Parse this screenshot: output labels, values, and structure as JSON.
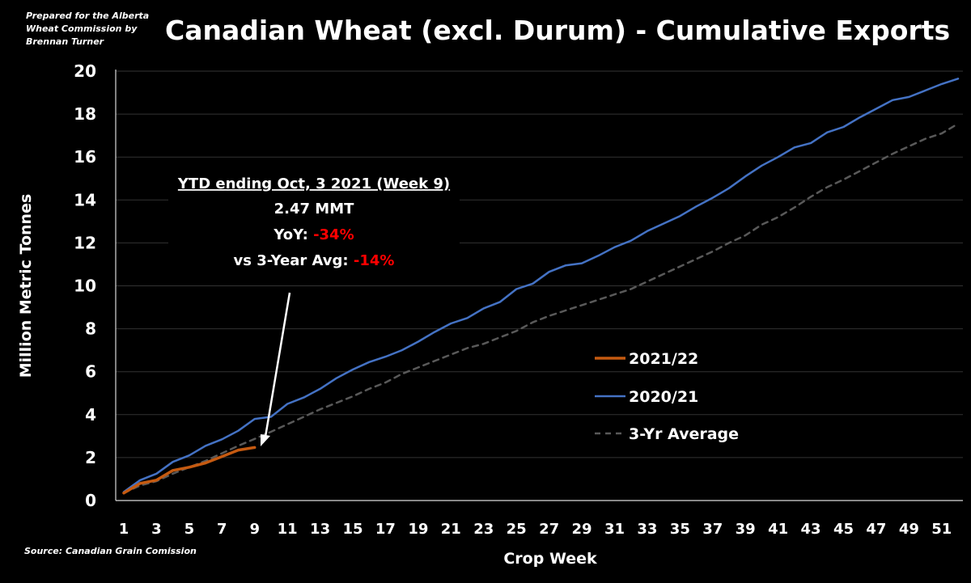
{
  "header": {
    "credit": "Prepared for the Alberta Wheat Commission by Brennan Turner",
    "source": "Source: Canadian Grain Comission"
  },
  "annotation": {
    "heading": "YTD ending Oct, 3 2021 (Week 9)",
    "value": "2.47 MMT",
    "yoy_label": "YoY: ",
    "yoy_value": "-34%",
    "avg_label": "vs 3-Year Avg: ",
    "avg_value": "-14%"
  },
  "colors": {
    "series_2021": "#c55a11",
    "series_2020": "#4472c4",
    "series_avg": "#595959",
    "highlight": "#ff0000",
    "grid": "#333333",
    "text": "#ffffff"
  },
  "chart_data": {
    "type": "line",
    "title": "Canadian Wheat (excl. Durum) - Cumulative Exports",
    "xlabel": "Crop Week",
    "ylabel": "Million Metric Tonnes",
    "xlim": [
      1,
      52
    ],
    "ylim": [
      0,
      20
    ],
    "y_ticks": [
      0,
      2,
      4,
      6,
      8,
      10,
      12,
      14,
      16,
      18,
      20
    ],
    "x_ticks": [
      1,
      3,
      5,
      7,
      9,
      11,
      13,
      15,
      17,
      19,
      21,
      23,
      25,
      27,
      29,
      31,
      33,
      35,
      37,
      39,
      41,
      43,
      45,
      47,
      49,
      51
    ],
    "grid": "horizontal",
    "legend_position": "center-right",
    "series": [
      {
        "name": "2021/22",
        "style": "solid",
        "x": [
          1,
          2,
          3,
          4,
          5,
          6,
          7,
          8,
          9
        ],
        "y": [
          0.35,
          0.8,
          0.95,
          1.4,
          1.55,
          1.75,
          2.05,
          2.35,
          2.47
        ]
      },
      {
        "name": "2020/21",
        "style": "solid",
        "x": [
          1,
          2,
          3,
          4,
          5,
          6,
          7,
          8,
          9,
          10,
          11,
          12,
          13,
          14,
          15,
          16,
          17,
          18,
          19,
          20,
          21,
          22,
          23,
          24,
          25,
          26,
          27,
          28,
          29,
          30,
          31,
          32,
          33,
          34,
          35,
          36,
          37,
          38,
          39,
          40,
          41,
          42,
          43,
          44,
          45,
          46,
          47,
          48,
          49,
          50,
          51,
          52
        ],
        "y": [
          0.4,
          0.95,
          1.25,
          1.8,
          2.1,
          2.55,
          2.85,
          3.25,
          3.8,
          3.9,
          4.5,
          4.8,
          5.2,
          5.7,
          6.1,
          6.45,
          6.7,
          7.0,
          7.4,
          7.85,
          8.25,
          8.5,
          8.95,
          9.25,
          9.85,
          10.1,
          10.65,
          10.95,
          11.05,
          11.4,
          11.8,
          12.1,
          12.55,
          12.9,
          13.25,
          13.7,
          14.1,
          14.55,
          15.1,
          15.6,
          16.0,
          16.45,
          16.65,
          17.15,
          17.4,
          17.85,
          18.25,
          18.65,
          18.8,
          19.1,
          19.4,
          19.65
        ]
      },
      {
        "name": "3-Yr Average",
        "style": "dashed",
        "x": [
          1,
          2,
          3,
          4,
          5,
          6,
          7,
          8,
          9,
          10,
          11,
          12,
          13,
          14,
          15,
          16,
          17,
          18,
          19,
          20,
          21,
          22,
          23,
          24,
          25,
          26,
          27,
          28,
          29,
          30,
          31,
          32,
          33,
          34,
          35,
          36,
          37,
          38,
          39,
          40,
          41,
          42,
          43,
          44,
          45,
          46,
          47,
          48,
          49,
          50,
          51,
          52
        ],
        "y": [
          0.35,
          0.7,
          0.9,
          1.25,
          1.55,
          1.85,
          2.2,
          2.55,
          2.87,
          3.2,
          3.55,
          3.9,
          4.25,
          4.55,
          4.85,
          5.2,
          5.5,
          5.9,
          6.2,
          6.5,
          6.8,
          7.1,
          7.3,
          7.6,
          7.9,
          8.3,
          8.6,
          8.85,
          9.1,
          9.35,
          9.6,
          9.85,
          10.2,
          10.55,
          10.9,
          11.25,
          11.6,
          12.0,
          12.35,
          12.85,
          13.2,
          13.65,
          14.15,
          14.6,
          14.95,
          15.35,
          15.75,
          16.15,
          16.5,
          16.85,
          17.1,
          17.55
        ]
      }
    ]
  }
}
